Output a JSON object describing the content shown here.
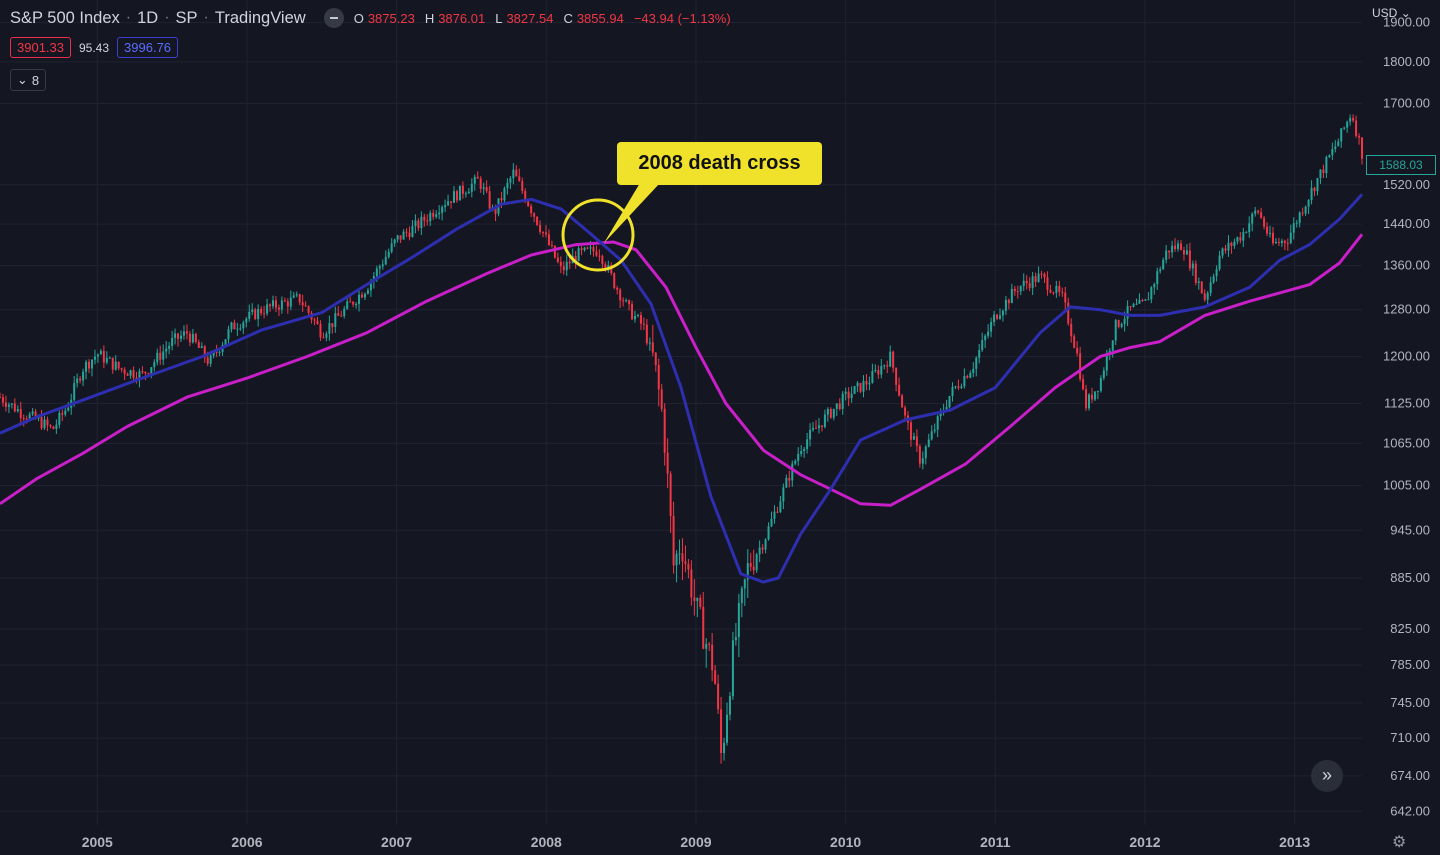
{
  "header": {
    "symbol": "S&P 500 Index",
    "interval": "1D",
    "exchange": "SP",
    "source": "TradingView",
    "ohlc": {
      "o_label": "O",
      "o": "3875.23",
      "h_label": "H",
      "h": "3876.01",
      "l_label": "L",
      "l": "3827.54",
      "c_label": "C",
      "c": "3855.94",
      "change": "−43.94 (−1.13%)"
    }
  },
  "indicators": {
    "ma_red": "3901.33",
    "middle": "95.43",
    "ma_blue": "3996.76",
    "collapsed_count": "8"
  },
  "currency": "USD",
  "last_price_tag": "1588.03",
  "annotation": {
    "label": "2008 death cross"
  },
  "colors": {
    "background": "#141722",
    "up": "#26a69a",
    "down": "#f23645",
    "ma_short": "#2d2fb0",
    "ma_long": "#c81fc8",
    "callout": "#f0e22a",
    "circle": "#f0e22a"
  },
  "icons": {
    "visibility": "eye-icon",
    "collapse": "chevron-down-icon",
    "scroll": "double-chevron-right-icon",
    "settings": "gear-icon"
  },
  "chart_data": {
    "type": "line",
    "scale": "log",
    "x_tick_labels": [
      "2005",
      "2006",
      "2007",
      "2008",
      "2009",
      "2010",
      "2011",
      "2012",
      "2013"
    ],
    "y_tick_labels": [
      "1900.00",
      "1800.00",
      "1700.00",
      "1520.00",
      "1440.00",
      "1360.00",
      "1280.00",
      "1200.00",
      "1125.00",
      "1065.00",
      "1005.00",
      "945.00",
      "885.00",
      "825.00",
      "785.00",
      "745.00",
      "710.00",
      "674.00",
      "642.00"
    ],
    "ylim": [
      630,
      1960
    ],
    "x_range": [
      "2004.35",
      "2013.45"
    ],
    "series": [
      {
        "kind": "price_close",
        "x": [
          2004.35,
          2004.5,
          2004.6,
          2004.7,
          2004.8,
          2004.9,
          2005.0,
          2005.15,
          2005.3,
          2005.5,
          2005.6,
          2005.75,
          2005.9,
          2006.1,
          2006.35,
          2006.5,
          2006.6,
          2006.8,
          2007.0,
          2007.15,
          2007.3,
          2007.55,
          2007.65,
          2007.78,
          2007.9,
          2008.0,
          2008.1,
          2008.2,
          2008.35,
          2008.45,
          2008.55,
          2008.65,
          2008.72,
          2008.78,
          2008.85,
          2008.9,
          2008.95,
          2009.0,
          2009.05,
          2009.12,
          2009.17,
          2009.25,
          2009.35,
          2009.45,
          2009.55,
          2009.7,
          2009.85,
          2010.0,
          2010.15,
          2010.3,
          2010.4,
          2010.5,
          2010.6,
          2010.7,
          2010.85,
          2011.0,
          2011.15,
          2011.3,
          2011.45,
          2011.55,
          2011.6,
          2011.7,
          2011.8,
          2011.9,
          2012.0,
          2012.15,
          2012.25,
          2012.4,
          2012.5,
          2012.65,
          2012.75,
          2012.85,
          2012.95,
          2013.1,
          2013.2,
          2013.3,
          2013.38,
          2013.45
        ],
        "values": [
          1135,
          1110,
          1100,
          1085,
          1120,
          1180,
          1205,
          1180,
          1170,
          1225,
          1240,
          1190,
          1250,
          1280,
          1300,
          1240,
          1265,
          1320,
          1410,
          1440,
          1480,
          1530,
          1460,
          1545,
          1470,
          1410,
          1350,
          1380,
          1390,
          1330,
          1280,
          1250,
          1190,
          1100,
          900,
          930,
          890,
          850,
          820,
          780,
          690,
          800,
          900,
          930,
          980,
          1060,
          1100,
          1135,
          1160,
          1200,
          1100,
          1040,
          1090,
          1140,
          1185,
          1270,
          1320,
          1340,
          1300,
          1200,
          1120,
          1160,
          1250,
          1280,
          1290,
          1390,
          1400,
          1300,
          1380,
          1420,
          1470,
          1400,
          1410,
          1500,
          1560,
          1620,
          1680,
          1588
        ]
      },
      {
        "kind": "ma_short",
        "x": [
          2004.35,
          2004.6,
          2004.9,
          2005.3,
          2005.7,
          2006.1,
          2006.5,
          2006.8,
          2007.1,
          2007.4,
          2007.7,
          2007.9,
          2008.1,
          2008.3,
          2008.5,
          2008.7,
          2008.9,
          2009.1,
          2009.3,
          2009.45,
          2009.55,
          2009.7,
          2009.9,
          2010.1,
          2010.4,
          2010.7,
          2011.0,
          2011.3,
          2011.5,
          2011.7,
          2011.9,
          2012.1,
          2012.4,
          2012.7,
          2012.9,
          2013.1,
          2013.3,
          2013.45
        ],
        "values": [
          1080,
          1105,
          1130,
          1165,
          1200,
          1245,
          1275,
          1325,
          1375,
          1430,
          1480,
          1490,
          1470,
          1420,
          1370,
          1290,
          1150,
          990,
          890,
          880,
          885,
          940,
          1000,
          1070,
          1100,
          1115,
          1150,
          1240,
          1285,
          1280,
          1270,
          1270,
          1285,
          1320,
          1370,
          1400,
          1450,
          1500
        ]
      },
      {
        "kind": "ma_long",
        "x": [
          2004.35,
          2004.6,
          2004.9,
          2005.2,
          2005.6,
          2006.0,
          2006.4,
          2006.8,
          2007.2,
          2007.6,
          2007.9,
          2008.2,
          2008.45,
          2008.6,
          2008.8,
          2009.0,
          2009.2,
          2009.45,
          2009.7,
          2009.9,
          2010.1,
          2010.3,
          2010.5,
          2010.8,
          2011.1,
          2011.4,
          2011.7,
          2011.9,
          2012.1,
          2012.4,
          2012.7,
          2012.9,
          2013.1,
          2013.3,
          2013.45
        ],
        "values": [
          980,
          1015,
          1050,
          1090,
          1135,
          1165,
          1200,
          1240,
          1295,
          1345,
          1380,
          1400,
          1405,
          1390,
          1320,
          1215,
          1125,
          1055,
          1020,
          1000,
          980,
          978,
          1000,
          1035,
          1090,
          1150,
          1200,
          1215,
          1225,
          1270,
          1295,
          1310,
          1325,
          1365,
          1420
        ]
      }
    ]
  }
}
